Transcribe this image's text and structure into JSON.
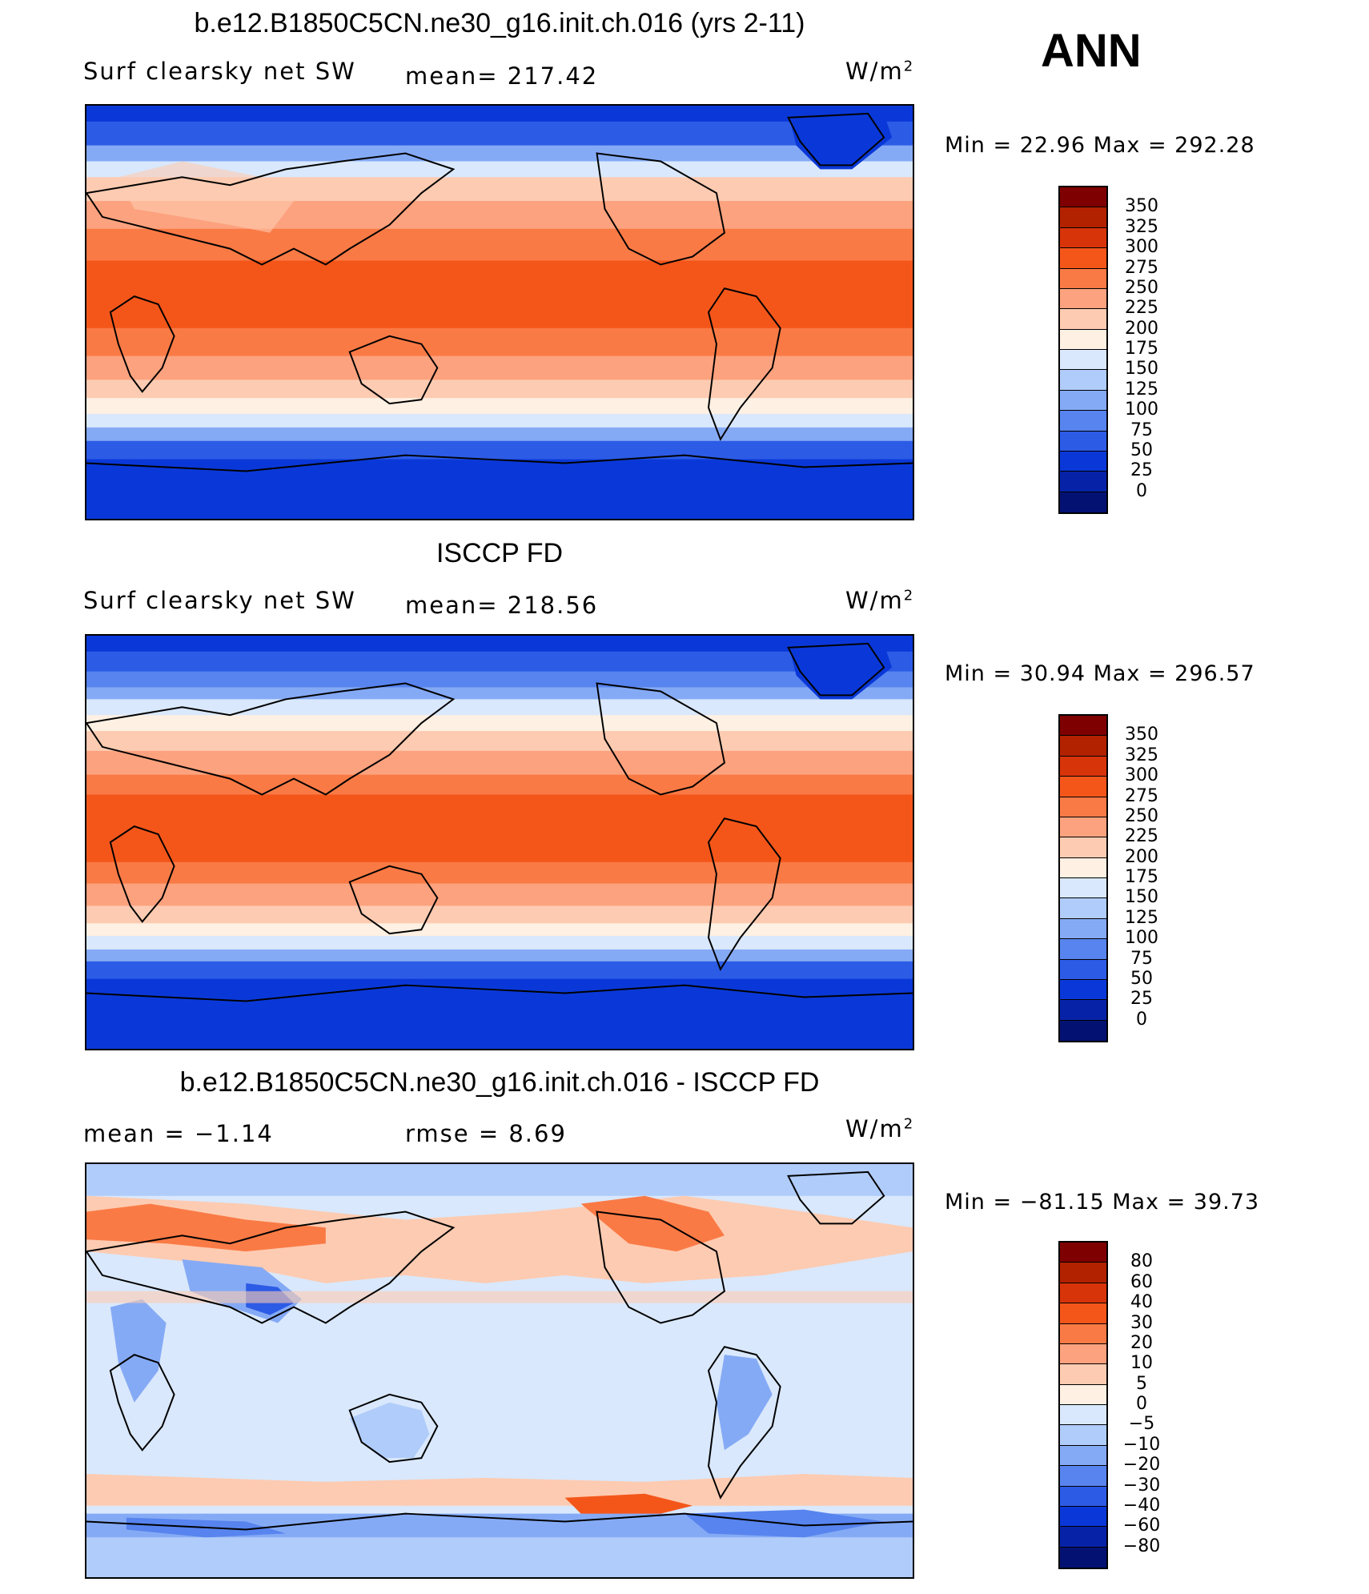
{
  "season": "ANN",
  "panels": [
    {
      "id": "model",
      "title": "b.e12.B1850C5CN.ne30_g16.init.ch.016 (yrs 2-11)",
      "variable": "Surf clearsky net SW",
      "left_stat": "",
      "mean": "mean= 217.42",
      "units": "W/m",
      "units_sup": "2",
      "min_max": "Min =   22.96 Max =  292.28",
      "colorbar_levels": [
        "350",
        "325",
        "300",
        "275",
        "250",
        "225",
        "200",
        "175",
        "150",
        "125",
        "100",
        "75",
        "50",
        "25",
        "0"
      ]
    },
    {
      "id": "obs",
      "title": "ISCCP FD",
      "variable": "Surf clearsky net SW",
      "left_stat": "",
      "mean": "mean= 218.56",
      "units": "W/m",
      "units_sup": "2",
      "min_max": "Min =   30.94 Max =  296.57",
      "colorbar_levels": [
        "350",
        "325",
        "300",
        "275",
        "250",
        "225",
        "200",
        "175",
        "150",
        "125",
        "100",
        "75",
        "50",
        "25",
        "0"
      ]
    },
    {
      "id": "diff",
      "title": "b.e12.B1850C5CN.ne30_g16.init.ch.016 - ISCCP FD",
      "variable": "mean =   −1.14",
      "left_stat": "",
      "mean": "rmse =    8.69",
      "units": "W/m",
      "units_sup": "2",
      "min_max": "Min = −81.15 Max =   39.73",
      "colorbar_levels": [
        "80",
        "60",
        "40",
        "30",
        "20",
        "10",
        "5",
        "0",
        "−5",
        "−10",
        "−20",
        "−30",
        "−40",
        "−60",
        "−80"
      ]
    }
  ],
  "colors": {
    "colorbar": [
      "#7f0000",
      "#b22200",
      "#d8340a",
      "#f4561a",
      "#fa7a45",
      "#fca27e",
      "#fdcbb1",
      "#fef0e2",
      "#d9e8fc",
      "#b0ccfa",
      "#85aaf5",
      "#5784ee",
      "#2c5be6",
      "#0a38d8",
      "#0623a8",
      "#031272"
    ]
  }
}
